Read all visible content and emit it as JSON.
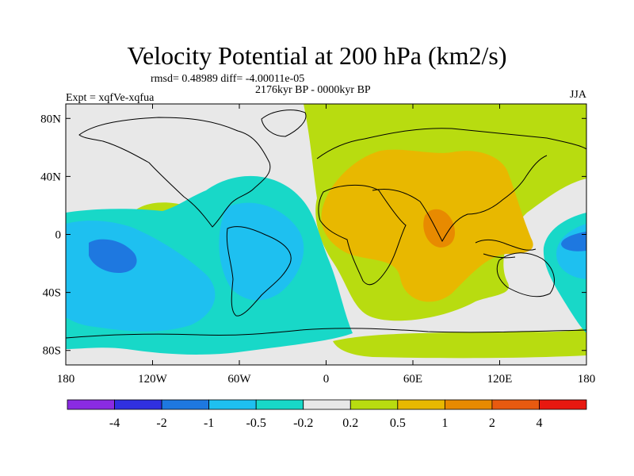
{
  "title": "Velocity Potential at 200 hPa (km2/s)",
  "stats_line": "rmsd= 0.48989 diff= -4.00011e-05",
  "period": "2176kyr BP - 0000kyr BP",
  "experiment": "Expt = xqfVe-xqfua",
  "season": "JJA",
  "map": {
    "lon_range": [
      -180,
      180
    ],
    "lat_range": [
      -90,
      90
    ],
    "lat_ticks": [
      {
        "value": 80,
        "label": "80N"
      },
      {
        "value": 40,
        "label": "40N"
      },
      {
        "value": 0,
        "label": "0"
      },
      {
        "value": -40,
        "label": "40S"
      },
      {
        "value": -80,
        "label": "80S"
      }
    ],
    "lon_ticks": [
      {
        "value": -180,
        "label": "180"
      },
      {
        "value": -120,
        "label": "120W"
      },
      {
        "value": -60,
        "label": "60W"
      },
      {
        "value": 0,
        "label": "0"
      },
      {
        "value": 60,
        "label": "60E"
      },
      {
        "value": 120,
        "label": "120E"
      },
      {
        "value": 180,
        "label": "180"
      }
    ]
  },
  "colorbar": {
    "colors": [
      "#8a2be2",
      "#3030e0",
      "#1e78e0",
      "#1ec0f0",
      "#18d8c8",
      "#e8e8e8",
      "#b8dc10",
      "#e8b800",
      "#e88a00",
      "#e85a10",
      "#e81810"
    ],
    "labels": [
      "-4",
      "-2",
      "-1",
      "-0.5",
      "-0.2",
      "0.2",
      "0.5",
      "1",
      "2",
      "4"
    ]
  }
}
